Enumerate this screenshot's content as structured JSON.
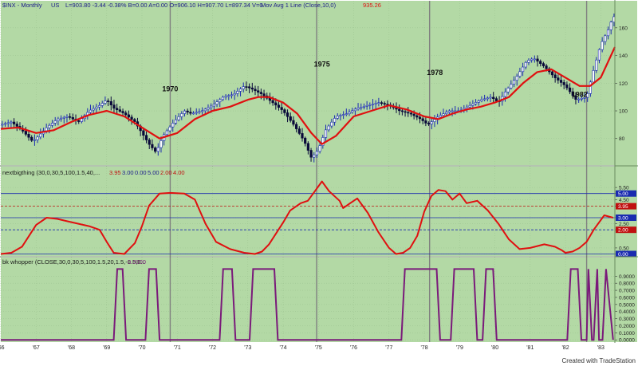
{
  "header": {
    "symbol": "$INX - Monthly",
    "exchange": "US",
    "quote": "L=903.80  -3.44  -0.38%  B=0.00  A=0.00  O=906.10  H=907.70  L=897.34  V=0",
    "study": "Mov Avg 1 Line (Close,10,0)",
    "study_value": "935.26"
  },
  "indicator1": {
    "label": "nextbigthing (30,0,30,5,100,1.5,40,...",
    "params": [
      "3.95",
      "3.00",
      "0.00",
      "5.00",
      "2.00",
      "4.00"
    ]
  },
  "indicator2": {
    "label": "bk whopper (CLOSE,30,0,30,5,100,1.5,20,1.5,-1.5,0...",
    "value": "0.0000"
  },
  "footer": {
    "credit": "Created with TradeStation"
  },
  "colors": {
    "background": "#b3d9a5",
    "price_up": "#1a2bb0",
    "moving_average": "#e01010",
    "signal": "#7a1a7a",
    "indicator_line": "#e01010",
    "grid": "#9ec592",
    "vertical_marker": "#808080"
  },
  "chart_data": [
    {
      "type": "line",
      "name": "price",
      "x_ticks": [
        "'66",
        "'67",
        "'68",
        "'69",
        "'70",
        "'71",
        "'72",
        "'73",
        "'74",
        "'75",
        "'76",
        "'77",
        "'78",
        "'79",
        "'80",
        "'81",
        "'82",
        "'83"
      ],
      "y_ticks": [
        80,
        100,
        120,
        140,
        160
      ],
      "ylim": [
        62,
        172
      ],
      "xlim": [
        1966.0,
        1983.4
      ],
      "annotations": [
        {
          "text": "1970",
          "x": 1970.8,
          "y": 114
        },
        {
          "text": "1975",
          "x": 1975.1,
          "y": 132
        },
        {
          "text": "1978",
          "x": 1978.3,
          "y": 126
        },
        {
          "text": "1982",
          "x": 1982.4,
          "y": 110
        }
      ],
      "vertical_markers": [
        1970.8,
        1974.95,
        1978.15,
        1982.6
      ],
      "series": [
        {
          "name": "Close",
          "x": [
            1966.0,
            1966.3,
            1966.6,
            1966.9,
            1967.0,
            1967.3,
            1967.6,
            1967.9,
            1968.2,
            1968.5,
            1968.8,
            1969.0,
            1969.2,
            1969.5,
            1969.8,
            1970.0,
            1970.2,
            1970.4,
            1970.6,
            1970.9,
            1971.2,
            1971.4,
            1971.7,
            1972.0,
            1972.3,
            1972.6,
            1972.9,
            1973.1,
            1973.4,
            1973.7,
            1974.0,
            1974.3,
            1974.6,
            1974.8,
            1975.0,
            1975.2,
            1975.5,
            1975.8,
            1976.1,
            1976.4,
            1976.7,
            1977.0,
            1977.3,
            1977.6,
            1977.9,
            1978.1,
            1978.4,
            1978.7,
            1979.0,
            1979.3,
            1979.6,
            1979.9,
            1980.1,
            1980.3,
            1980.6,
            1980.9,
            1981.1,
            1981.4,
            1981.7,
            1982.0,
            1982.3,
            1982.6,
            1982.8,
            1983.0,
            1983.2,
            1983.35
          ],
          "y": [
            90,
            92,
            86,
            78,
            80,
            88,
            94,
            96,
            92,
            100,
            104,
            108,
            102,
            98,
            92,
            84,
            76,
            70,
            82,
            92,
            100,
            98,
            100,
            104,
            110,
            112,
            118,
            116,
            112,
            106,
            100,
            90,
            78,
            66,
            72,
            86,
            96,
            98,
            102,
            104,
            106,
            104,
            100,
            98,
            94,
            90,
            96,
            100,
            100,
            104,
            108,
            110,
            106,
            114,
            124,
            136,
            138,
            132,
            124,
            118,
            108,
            110,
            130,
            148,
            158,
            168
          ]
        },
        {
          "name": "Mov Avg",
          "x": [
            1966.0,
            1966.5,
            1967.0,
            1967.5,
            1968.0,
            1968.5,
            1969.0,
            1969.5,
            1970.0,
            1970.5,
            1971.0,
            1971.5,
            1972.0,
            1972.5,
            1973.0,
            1973.3,
            1973.6,
            1974.0,
            1974.4,
            1974.8,
            1975.1,
            1975.5,
            1976.0,
            1976.5,
            1977.0,
            1977.5,
            1978.0,
            1978.4,
            1978.8,
            1979.2,
            1979.6,
            1980.0,
            1980.4,
            1980.8,
            1981.2,
            1981.6,
            1982.0,
            1982.4,
            1982.7,
            1983.0,
            1983.4
          ],
          "y": [
            87,
            88,
            84,
            86,
            92,
            97,
            100,
            96,
            88,
            80,
            84,
            94,
            100,
            103,
            108,
            110,
            110,
            106,
            98,
            84,
            76,
            82,
            96,
            100,
            104,
            101,
            96,
            94,
            98,
            101,
            103,
            106,
            110,
            120,
            128,
            130,
            124,
            118,
            118,
            124,
            146
          ]
        }
      ]
    },
    {
      "type": "line",
      "name": "nextbigthing",
      "y_ticks": [
        0.0,
        0.5,
        2.0,
        2.5,
        3.0,
        3.95,
        4.5,
        5.0,
        5.5
      ],
      "ylim": [
        -0.1,
        6.3
      ],
      "reference_lines": [
        0.0,
        2.0,
        3.0,
        3.95,
        5.0
      ],
      "series": [
        {
          "name": "nextbigthing",
          "x": [
            1966.0,
            1966.3,
            1966.6,
            1966.8,
            1967.0,
            1967.3,
            1967.6,
            1967.9,
            1968.2,
            1968.5,
            1968.8,
            1969.0,
            1969.2,
            1969.5,
            1969.8,
            1970.0,
            1970.2,
            1970.5,
            1970.8,
            1971.2,
            1971.5,
            1971.8,
            1972.1,
            1972.5,
            1972.9,
            1973.2,
            1973.4,
            1973.6,
            1973.8,
            1974.0,
            1974.2,
            1974.5,
            1974.7,
            1974.9,
            1975.1,
            1975.3,
            1975.6,
            1975.7,
            1975.9,
            1976.1,
            1976.4,
            1976.7,
            1977.0,
            1977.2,
            1977.4,
            1977.6,
            1977.8,
            1978.0,
            1978.2,
            1978.4,
            1978.6,
            1978.8,
            1979.0,
            1979.2,
            1979.5,
            1979.8,
            1980.1,
            1980.4,
            1980.7,
            1981.0,
            1981.4,
            1981.7,
            1981.9,
            1982.0,
            1982.2,
            1982.4,
            1982.6,
            1982.8,
            1983.1,
            1983.35
          ],
          "y": [
            0.0,
            0.1,
            0.6,
            1.5,
            2.4,
            3.0,
            2.9,
            2.7,
            2.5,
            2.3,
            2.0,
            1.0,
            0.1,
            0.0,
            0.9,
            2.3,
            4.0,
            5.0,
            5.05,
            5.0,
            4.5,
            2.5,
            1.0,
            0.4,
            0.1,
            0.0,
            0.2,
            0.8,
            1.7,
            2.6,
            3.6,
            4.2,
            4.4,
            5.2,
            6.0,
            5.2,
            4.4,
            3.8,
            4.2,
            4.6,
            3.4,
            1.8,
            0.5,
            0.0,
            0.1,
            0.5,
            1.5,
            3.5,
            4.8,
            5.3,
            5.2,
            4.5,
            5.0,
            4.2,
            4.4,
            3.6,
            2.5,
            1.2,
            0.4,
            0.5,
            0.8,
            0.6,
            0.3,
            0.1,
            0.2,
            0.5,
            1.0,
            2.0,
            3.2,
            3.0
          ]
        }
      ]
    },
    {
      "type": "line",
      "name": "bk whopper",
      "y_ticks": [
        0.0,
        0.1,
        0.2,
        0.3,
        0.4,
        0.5,
        0.6,
        0.7,
        0.8,
        0.9
      ],
      "ylim": [
        -0.02,
        1.05
      ],
      "series": [
        {
          "name": "bk whopper",
          "x": [
            1966.0,
            1969.2,
            1969.3,
            1969.45,
            1969.55,
            1970.1,
            1970.2,
            1970.4,
            1970.5,
            1972.2,
            1972.3,
            1972.55,
            1972.65,
            1973.05,
            1973.15,
            1973.75,
            1973.85,
            1977.35,
            1977.45,
            1978.35,
            1978.45,
            1978.75,
            1978.85,
            1979.4,
            1979.5,
            1979.65,
            1979.75,
            1979.95,
            1980.05,
            1982.05,
            1982.15,
            1982.35,
            1982.45,
            1982.6,
            1982.65,
            1982.75,
            1982.8,
            1982.9,
            1982.95,
            1983.05,
            1983.15,
            1983.35
          ],
          "y": [
            0,
            0,
            1,
            1,
            0,
            0,
            1,
            1,
            0,
            0,
            1,
            1,
            0,
            0,
            1,
            1,
            0,
            0,
            1,
            1,
            0,
            0,
            1,
            1,
            0,
            0,
            1,
            1,
            0,
            0,
            1,
            1,
            0,
            0,
            1,
            0,
            0,
            1,
            0,
            0,
            1,
            0
          ]
        }
      ]
    }
  ]
}
